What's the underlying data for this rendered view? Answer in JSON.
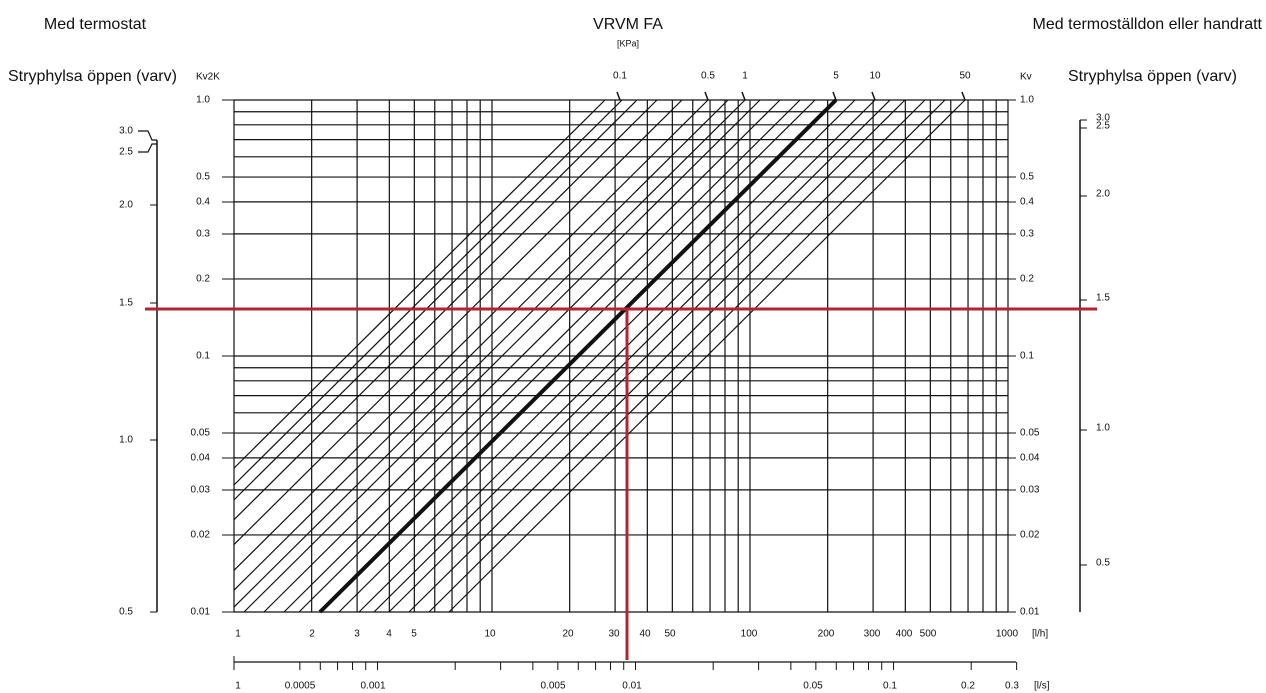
{
  "header": {
    "left": "Med termostat",
    "title": "VRVM FA",
    "unit": "[KPa]",
    "right": "Med termoställdon eller handratt"
  },
  "left_scale": {
    "title": "Stryphylsa öppen (varv)",
    "ticks": [
      "3.0",
      "2.5",
      "2.0",
      "1.5",
      "1.0",
      "0.5"
    ]
  },
  "right_scale": {
    "title": "Stryphylsa öppen (varv)",
    "ticks": [
      "3.0",
      "2.5",
      "2.0",
      "1.5",
      "1.0",
      "0.5"
    ]
  },
  "kv2k_axis": {
    "title": "Kv2K",
    "ticks": [
      "1.0",
      "0.5",
      "0.4",
      "0.3",
      "0.2",
      "0.1",
      "0.05",
      "0.04",
      "0.03",
      "0.02",
      "0.01"
    ]
  },
  "kv_axis": {
    "title": "Kv",
    "ticks": [
      "1.0",
      "0.5",
      "0.4",
      "0.3",
      "0.2",
      "0.1",
      "0.05",
      "0.04",
      "0.03",
      "0.02",
      "0.01"
    ]
  },
  "pressure_axis": {
    "ticks": [
      "0.1",
      "0.5",
      "1",
      "5",
      "10",
      "50"
    ]
  },
  "flow_lh_axis": {
    "unit": "[l/h]",
    "ticks": [
      "1",
      "2",
      "3",
      "4",
      "5",
      "10",
      "20",
      "30",
      "40",
      "50",
      "100",
      "200",
      "300",
      "400",
      "500",
      "1000"
    ]
  },
  "flow_ls_axis": {
    "unit": "[l/s]",
    "ticks": [
      "1",
      "0.0005",
      "0.001",
      "0.005",
      "0.01",
      "0.05",
      "0.1",
      "0.2",
      "0.3"
    ]
  }
}
